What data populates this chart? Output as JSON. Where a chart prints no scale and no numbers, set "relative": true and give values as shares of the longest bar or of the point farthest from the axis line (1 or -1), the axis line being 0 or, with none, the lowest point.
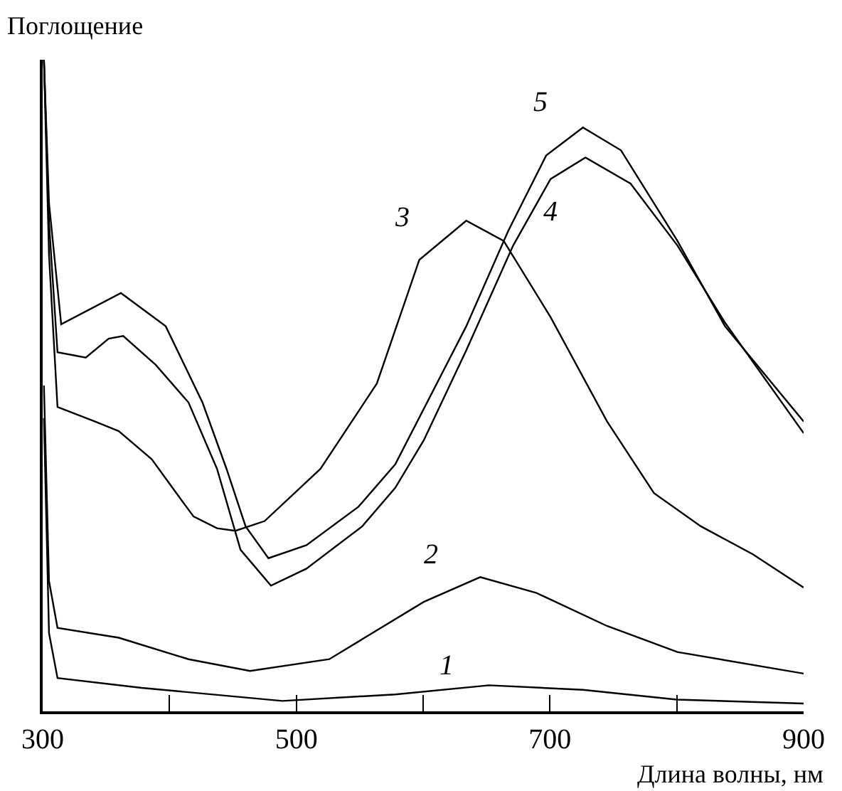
{
  "chart_data": {
    "type": "line",
    "relative": true,
    "xlabel": "Длина волны, нм",
    "ylabel": "Поглощение",
    "xlim": [
      300,
      900
    ],
    "xticks": [
      300,
      {
        "value": 400,
        "label": null
      },
      500,
      {
        "value": 600,
        "label": null
      },
      700,
      {
        "value": 800,
        "label": null
      },
      900
    ],
    "tick_labels": "x",
    "legend": false,
    "marker": "none",
    "line_style": "solid",
    "series": [
      {
        "name": "1",
        "color": "#000000",
        "x": [
          301,
          305,
          311.7,
          378,
          489,
          578,
          652,
          726,
          800,
          900
        ],
        "values": [
          0.45,
          0.12,
          0.051,
          0.036,
          0.016,
          0.026,
          0.04,
          0.033,
          0.018,
          0.012
        ]
      },
      {
        "name": "2",
        "color": "#000000",
        "x": [
          301,
          305,
          311.7,
          360,
          415,
          463.5,
          526,
          600.5,
          645,
          689,
          745,
          800.5,
          900
        ],
        "values": [
          0.5,
          0.2,
          0.128,
          0.113,
          0.08,
          0.062,
          0.08,
          0.168,
          0.206,
          0.182,
          0.131,
          0.091,
          0.058
        ]
      },
      {
        "name": "3",
        "color": "#000000",
        "x": [
          301,
          305,
          311.7,
          341,
          360,
          386,
          408,
          419,
          437.5,
          452,
          475,
          519,
          563.5,
          597,
          634,
          663.5,
          700.5,
          745,
          782,
          819,
          860,
          900
        ],
        "values": [
          1.0,
          0.7,
          0.467,
          0.445,
          0.43,
          0.387,
          0.328,
          0.299,
          0.281,
          0.277,
          0.292,
          0.372,
          0.503,
          0.693,
          0.753,
          0.722,
          0.605,
          0.445,
          0.335,
          0.284,
          0.241,
          0.19
        ]
      },
      {
        "name": "4",
        "color": "#000000",
        "x": [
          301,
          305,
          311.7,
          334,
          352,
          363.5,
          389,
          415,
          437.5,
          456,
          480,
          508,
          552,
          578,
          600.5,
          634,
          671,
          700.5,
          728,
          763.5,
          800.5,
          837.5,
          900
        ],
        "values": [
          1.0,
          0.75,
          0.551,
          0.543,
          0.572,
          0.576,
          0.532,
          0.474,
          0.372,
          0.248,
          0.193,
          0.219,
          0.284,
          0.343,
          0.416,
          0.554,
          0.715,
          0.817,
          0.85,
          0.81,
          0.715,
          0.598,
          0.427
        ]
      },
      {
        "name": "5",
        "color": "#000000",
        "x": [
          301,
          305,
          314.6,
          361.7,
          397,
          426,
          445,
          460,
          478,
          508,
          549,
          578,
          634,
          667,
          697,
          726,
          756,
          800.5,
          838,
          900
        ],
        "values": [
          1.0,
          0.78,
          0.594,
          0.642,
          0.591,
          0.474,
          0.372,
          0.284,
          0.235,
          0.255,
          0.314,
          0.379,
          0.591,
          0.737,
          0.853,
          0.896,
          0.861,
          0.722,
          0.591,
          0.445
        ]
      }
    ]
  }
}
